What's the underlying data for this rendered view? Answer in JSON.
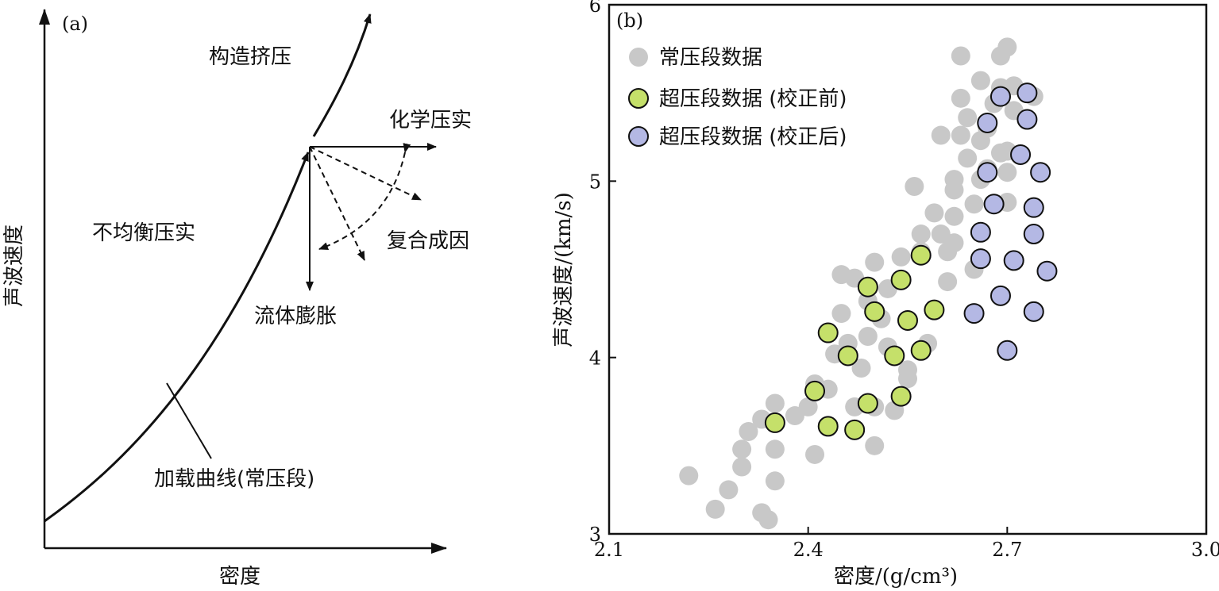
{
  "panel_a": {
    "tag": "(a)",
    "xlabel": "密度",
    "ylabel": "声波速度",
    "labels": {
      "tectonic": "构造挤压",
      "chemical": "化学压实",
      "disequilibrium": "不均衡压实",
      "composite": "复合成因",
      "fluid": "流体膨胀",
      "loading_curve": "加载曲线(常压段)"
    }
  },
  "chart_data": {
    "type": "scatter",
    "panel_tag": "(b)",
    "xlabel": "密度/(g/cm³)",
    "ylabel": "声波速度/(km/s)",
    "xlim": [
      2.1,
      3.0
    ],
    "ylim": [
      3,
      6
    ],
    "xticks": [
      "2.1",
      "2.4",
      "2.7",
      "3.0"
    ],
    "yticks": [
      "3",
      "4",
      "5",
      "6"
    ],
    "legend_position": "top-left",
    "series": [
      {
        "name": "常压段数据",
        "color": "#c8c8c8",
        "points": [
          [
            2.22,
            3.33
          ],
          [
            2.26,
            3.14
          ],
          [
            2.28,
            3.25
          ],
          [
            2.3,
            3.38
          ],
          [
            2.3,
            3.48
          ],
          [
            2.31,
            3.58
          ],
          [
            2.33,
            3.65
          ],
          [
            2.33,
            3.12
          ],
          [
            2.34,
            3.08
          ],
          [
            2.35,
            3.3
          ],
          [
            2.35,
            3.48
          ],
          [
            2.35,
            3.74
          ],
          [
            2.38,
            3.67
          ],
          [
            2.4,
            3.72
          ],
          [
            2.41,
            3.45
          ],
          [
            2.41,
            3.85
          ],
          [
            2.43,
            3.82
          ],
          [
            2.44,
            4.02
          ],
          [
            2.46,
            4.08
          ],
          [
            2.45,
            4.25
          ],
          [
            2.45,
            4.47
          ],
          [
            2.47,
            3.72
          ],
          [
            2.47,
            4.45
          ],
          [
            2.48,
            3.94
          ],
          [
            2.49,
            4.12
          ],
          [
            2.49,
            4.32
          ],
          [
            2.5,
            3.72
          ],
          [
            2.5,
            4.54
          ],
          [
            2.5,
            3.5
          ],
          [
            2.51,
            4.22
          ],
          [
            2.52,
            4.06
          ],
          [
            2.52,
            4.39
          ],
          [
            2.53,
            3.7
          ],
          [
            2.54,
            4.57
          ],
          [
            2.55,
            3.88
          ],
          [
            2.55,
            3.93
          ],
          [
            2.56,
            4.97
          ],
          [
            2.57,
            4.6
          ],
          [
            2.57,
            4.7
          ],
          [
            2.58,
            4.08
          ],
          [
            2.59,
            4.82
          ],
          [
            2.6,
            4.7
          ],
          [
            2.6,
            5.26
          ],
          [
            2.61,
            4.43
          ],
          [
            2.61,
            4.6
          ],
          [
            2.62,
            4.65
          ],
          [
            2.62,
            4.8
          ],
          [
            2.62,
            4.95
          ],
          [
            2.62,
            5.01
          ],
          [
            2.63,
            5.26
          ],
          [
            2.63,
            5.47
          ],
          [
            2.63,
            5.71
          ],
          [
            2.64,
            5.13
          ],
          [
            2.64,
            5.36
          ],
          [
            2.65,
            4.5
          ],
          [
            2.65,
            4.87
          ],
          [
            2.66,
            5.01
          ],
          [
            2.66,
            5.23
          ],
          [
            2.66,
            5.57
          ],
          [
            2.67,
            5.07
          ],
          [
            2.67,
            5.3
          ],
          [
            2.68,
            5.44
          ],
          [
            2.69,
            5.16
          ],
          [
            2.69,
            5.53
          ],
          [
            2.69,
            5.71
          ],
          [
            2.7,
            5.05
          ],
          [
            2.7,
            5.17
          ],
          [
            2.7,
            5.76
          ],
          [
            2.7,
            4.88
          ],
          [
            2.71,
            5.4
          ],
          [
            2.71,
            5.54
          ],
          [
            2.74,
            5.48
          ]
        ]
      },
      {
        "name": "超压段数据 (校正前)",
        "color": "#c5e06a",
        "points": [
          [
            2.35,
            3.63
          ],
          [
            2.41,
            3.81
          ],
          [
            2.43,
            4.14
          ],
          [
            2.43,
            3.61
          ],
          [
            2.46,
            4.01
          ],
          [
            2.47,
            3.59
          ],
          [
            2.49,
            4.4
          ],
          [
            2.49,
            3.74
          ],
          [
            2.5,
            4.26
          ],
          [
            2.53,
            4.01
          ],
          [
            2.54,
            4.44
          ],
          [
            2.55,
            4.21
          ],
          [
            2.54,
            3.78
          ],
          [
            2.57,
            4.58
          ],
          [
            2.57,
            4.04
          ],
          [
            2.59,
            4.27
          ]
        ]
      },
      {
        "name": "超压段数据 (校正后)",
        "color": "#b4b8e4",
        "points": [
          [
            2.65,
            4.25
          ],
          [
            2.66,
            4.56
          ],
          [
            2.66,
            4.71
          ],
          [
            2.67,
            5.05
          ],
          [
            2.67,
            5.33
          ],
          [
            2.68,
            4.87
          ],
          [
            2.69,
            5.48
          ],
          [
            2.69,
            4.35
          ],
          [
            2.7,
            4.04
          ],
          [
            2.71,
            4.55
          ],
          [
            2.72,
            5.15
          ],
          [
            2.73,
            5.5
          ],
          [
            2.73,
            5.35
          ],
          [
            2.74,
            4.85
          ],
          [
            2.74,
            4.7
          ],
          [
            2.74,
            4.26
          ],
          [
            2.75,
            5.05
          ],
          [
            2.76,
            4.49
          ]
        ]
      }
    ]
  }
}
